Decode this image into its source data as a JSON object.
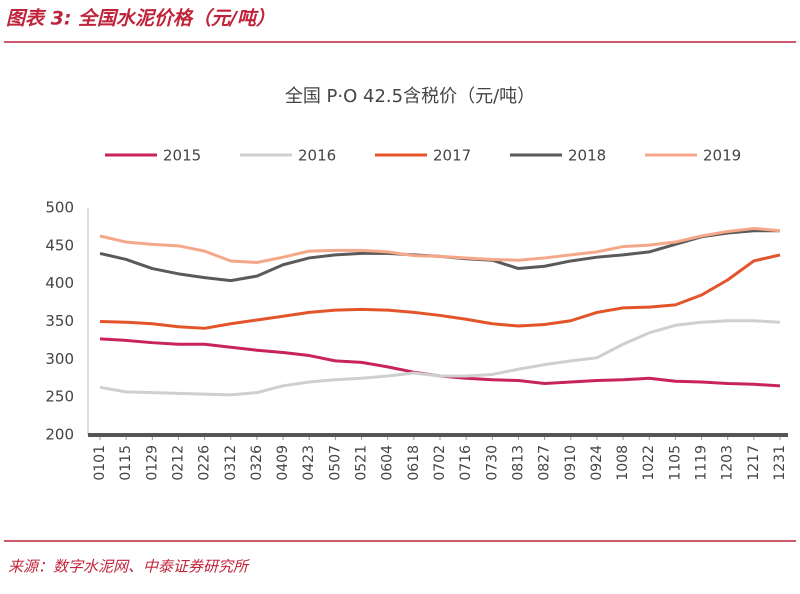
{
  "header": {
    "title": "图表 3:  全国水泥价格（元/吨）"
  },
  "chart_data": {
    "type": "line",
    "title": "全国 P·O 42.5含税价（元/吨）",
    "categories": [
      "0101",
      "0115",
      "0129",
      "0212",
      "0226",
      "0312",
      "0326",
      "0409",
      "0423",
      "0507",
      "0521",
      "0604",
      "0618",
      "0702",
      "0716",
      "0730",
      "0813",
      "0827",
      "0910",
      "0924",
      "1008",
      "1022",
      "1105",
      "1119",
      "1203",
      "1217",
      "1231"
    ],
    "series": [
      {
        "name": "2015",
        "color": "#c8235c",
        "values": [
          327,
          325,
          322,
          320,
          320,
          316,
          312,
          309,
          305,
          298,
          296,
          290,
          283,
          278,
          275,
          273,
          272,
          268,
          270,
          272,
          273,
          275,
          271,
          270,
          268,
          267,
          265
        ]
      },
      {
        "name": "2016",
        "color": "#cfcfcf",
        "values": [
          263,
          257,
          256,
          255,
          254,
          253,
          256,
          265,
          270,
          273,
          275,
          278,
          282,
          278,
          278,
          280,
          287,
          293,
          298,
          302,
          320,
          335,
          345,
          349,
          351,
          351,
          349
        ]
      },
      {
        "name": "2017",
        "color": "#e4542a",
        "values": [
          350,
          349,
          347,
          343,
          341,
          347,
          352,
          357,
          362,
          365,
          366,
          365,
          362,
          358,
          353,
          347,
          344,
          346,
          351,
          362,
          368,
          369,
          372,
          385,
          405,
          430,
          438
        ]
      },
      {
        "name": "2018",
        "color": "#5a5a5a",
        "values": [
          440,
          432,
          420,
          413,
          408,
          404,
          410,
          425,
          434,
          438,
          440,
          440,
          438,
          436,
          433,
          431,
          420,
          423,
          430,
          435,
          438,
          442,
          452,
          462,
          467,
          470,
          470
        ]
      },
      {
        "name": "2019",
        "color": "#f5a889",
        "values": [
          463,
          455,
          452,
          450,
          443,
          430,
          428,
          435,
          443,
          444,
          444,
          442,
          437,
          436,
          434,
          432,
          431,
          434,
          438,
          442,
          449,
          451,
          455,
          463,
          469,
          473,
          470
        ]
      }
    ],
    "ylim": [
      200,
      500
    ],
    "yticks": [
      200,
      250,
      300,
      350,
      400,
      450,
      500
    ],
    "grid": false,
    "legend": "top"
  },
  "source": {
    "text": "来源：数字水泥网、中泰证券研究所"
  }
}
